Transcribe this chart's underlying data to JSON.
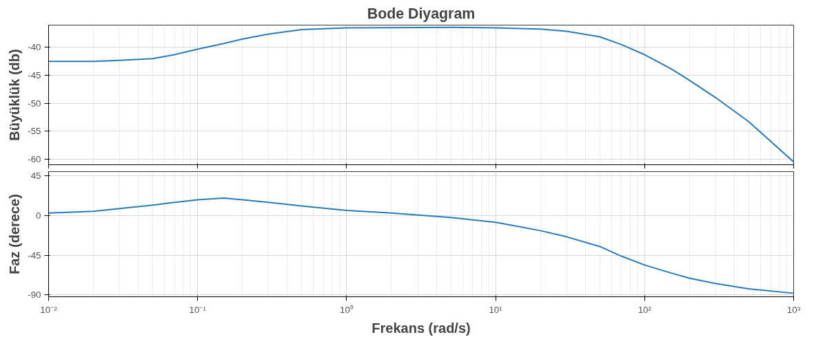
{
  "chart_data": [
    {
      "type": "line",
      "title": "Bode Diyagram",
      "ylabel": "Büyüklük (db)",
      "log": "x",
      "grid": true,
      "tick_labels": "y",
      "x": [
        0.01,
        0.02,
        0.03,
        0.05,
        0.07,
        0.1,
        0.15,
        0.2,
        0.3,
        0.5,
        1,
        2,
        5,
        10,
        20,
        30,
        50,
        70,
        100,
        150,
        200,
        300,
        500,
        1000
      ],
      "series": [
        {
          "color": "#2a7ab8",
          "values": [
            -42.5,
            -42.5,
            -42.3,
            -42.0,
            -41.3,
            -40.3,
            -39.3,
            -38.5,
            -37.6,
            -36.8,
            -36.5,
            -36.45,
            -36.4,
            -36.5,
            -36.7,
            -37.1,
            -38.1,
            -39.5,
            -41.3,
            -43.8,
            -45.9,
            -49,
            -53.3,
            -60.5
          ]
        }
      ],
      "xlim": [
        0.01,
        1000
      ],
      "xticks": [
        {
          "value": 0.01,
          "label": null
        },
        {
          "value": 0.1,
          "label": null
        },
        {
          "value": 1,
          "label": null
        },
        {
          "value": 10,
          "label": null
        },
        {
          "value": 100,
          "label": null
        },
        {
          "value": 1000,
          "label": null
        }
      ],
      "ylim": [
        -61,
        -36
      ],
      "yticks": [
        -60,
        -55,
        -50,
        -45,
        -40
      ]
    },
    {
      "type": "line",
      "ylabel": "Faz (derece)",
      "xlabel": "Frekans (rad/s)",
      "log": "x",
      "grid": true,
      "x": [
        0.01,
        0.02,
        0.03,
        0.05,
        0.07,
        0.1,
        0.15,
        0.2,
        0.3,
        0.5,
        1,
        2,
        5,
        10,
        20,
        30,
        50,
        70,
        100,
        150,
        200,
        300,
        500,
        1000
      ],
      "series": [
        {
          "color": "#2a7ab8",
          "values": [
            3,
            5,
            8,
            12,
            15,
            18,
            20,
            18,
            15,
            11,
            6,
            3,
            -2,
            -7.5,
            -17,
            -24,
            -35,
            -46,
            -56,
            -65,
            -71,
            -77,
            -83,
            -88
          ]
        }
      ],
      "xlim": [
        0.01,
        1000
      ],
      "xticks": [
        {
          "value": 0.01,
          "label": "10⁻²"
        },
        {
          "value": 0.1,
          "label": "10⁻¹"
        },
        {
          "value": 1,
          "label": "10⁰"
        },
        {
          "value": 10,
          "label": "10¹"
        },
        {
          "value": 100,
          "label": "10²"
        },
        {
          "value": 1000,
          "label": "10³"
        }
      ],
      "ylim": [
        -92,
        50
      ],
      "yticks": [
        -90,
        -45,
        0,
        45
      ]
    }
  ]
}
